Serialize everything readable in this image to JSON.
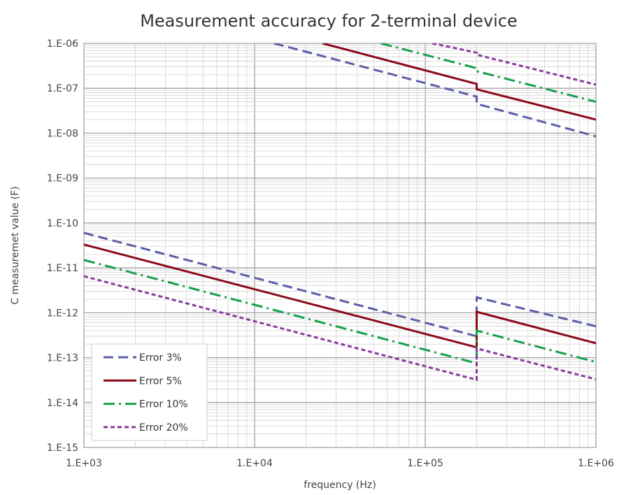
{
  "chart_data": {
    "type": "line",
    "title": "Measurement accuracy for 2-terminal device",
    "xlabel": "frequency (Hz)",
    "ylabel": "C measuremet value (F)",
    "x_scale": "log",
    "y_scale": "log",
    "xlim": [
      1000,
      1000000
    ],
    "ylim": [
      1e-15,
      1e-06
    ],
    "grid": true,
    "legend_position": "bottom-left",
    "x_tick_labels": [
      "1.E+03",
      "1.E+04",
      "1.E+05",
      "1.E+06"
    ],
    "y_tick_labels": [
      "1.E-15",
      "1.E-14",
      "1.E-13",
      "1.E-12",
      "1.E-11",
      "1.E-10",
      "1.E-09",
      "1.E-08",
      "1.E-07",
      "1.E-06"
    ],
    "series": [
      {
        "name": "Error 3%",
        "color": "#5b5ea6",
        "dash": "dashed",
        "lower": {
          "x": [
            1000,
            200000,
            200000,
            1000000
          ],
          "y": [
            6e-11,
            3e-13,
            2.2e-12,
            5e-13
          ]
        },
        "upper": {
          "x": [
            13000,
            200000,
            200000,
            1000000
          ],
          "y": [
            1e-06,
            6.5e-08,
            4.5e-08,
            8.5e-09
          ]
        }
      },
      {
        "name": "Error 5%",
        "color": "#8b0a1a",
        "dash": "solid",
        "lower": {
          "x": [
            1000,
            200000,
            200000,
            1000000
          ],
          "y": [
            3.3e-11,
            1.7e-13,
            1.05e-12,
            2.1e-13
          ]
        },
        "upper": {
          "x": [
            25000,
            200000,
            200000,
            1000000
          ],
          "y": [
            1e-06,
            1.25e-07,
            9.5e-08,
            2e-08
          ]
        }
      },
      {
        "name": "Error 10%",
        "color": "#14a04a",
        "dash": "dashdot",
        "lower": {
          "x": [
            1000,
            200000,
            200000,
            1000000
          ],
          "y": [
            1.5e-11,
            7.5e-14,
            4e-13,
            8e-14
          ]
        },
        "upper": {
          "x": [
            55000,
            200000,
            200000,
            1000000
          ],
          "y": [
            1e-06,
            2.8e-07,
            2.4e-07,
            5e-08
          ]
        }
      },
      {
        "name": "Error 20%",
        "color": "#8b3a9e",
        "dash": "dotted",
        "lower": {
          "x": [
            1000,
            200000,
            200000,
            1000000
          ],
          "y": [
            6.5e-12,
            3.2e-14,
            1.6e-13,
            3.3e-14
          ]
        },
        "upper": {
          "x": [
            110000,
            200000,
            200000,
            1000000
          ],
          "y": [
            1e-06,
            6.2e-07,
            5.6e-07,
            1.2e-07
          ]
        }
      }
    ]
  }
}
